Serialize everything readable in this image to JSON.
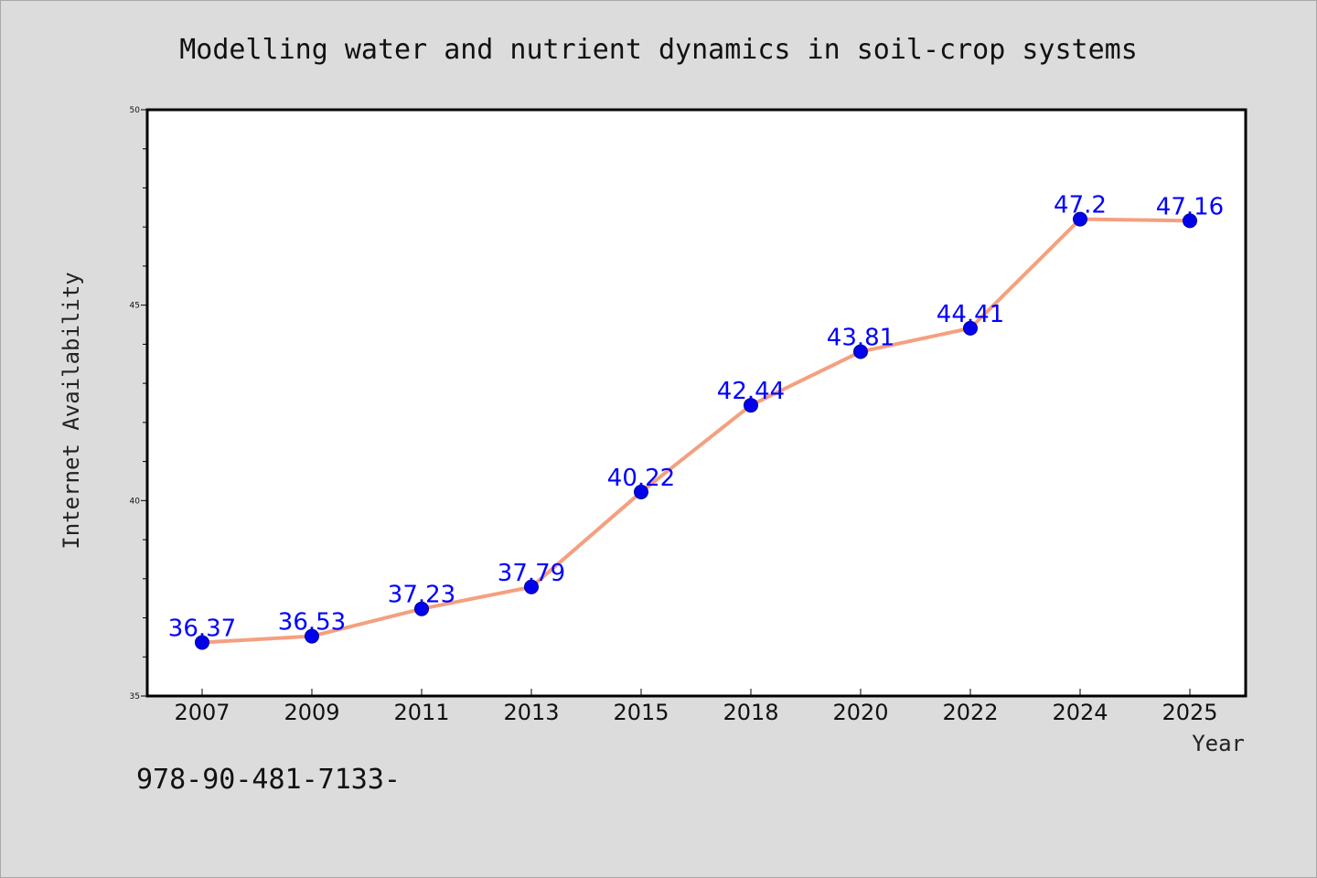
{
  "footnote": "978-90-481-7133-",
  "colors": {
    "background": "#dcdcdc",
    "plot_background": "#ffffff",
    "line": "#f4a07f",
    "marker": "#0000ee",
    "label": "#0000ff"
  },
  "chart_data": {
    "type": "line",
    "title": "Modelling water and nutrient dynamics in soil-crop systems",
    "xlabel": "Year",
    "ylabel": "Internet Availability",
    "ylim": [
      35,
      50
    ],
    "yticks": [
      35,
      40,
      45,
      50
    ],
    "grid": false,
    "categories": [
      "2007",
      "2009",
      "2011",
      "2013",
      "2015",
      "2018",
      "2020",
      "2022",
      "2024",
      "2025"
    ],
    "series": [
      {
        "values": [
          36.37,
          36.53,
          37.23,
          37.79,
          40.22,
          42.44,
          43.81,
          44.41,
          47.2,
          47.16
        ],
        "labels": [
          "36.37",
          "36.53",
          "37.23",
          "37.79",
          "40.22",
          "42.44",
          "43.81",
          "44.41",
          "47.2",
          "47.16"
        ]
      }
    ]
  }
}
